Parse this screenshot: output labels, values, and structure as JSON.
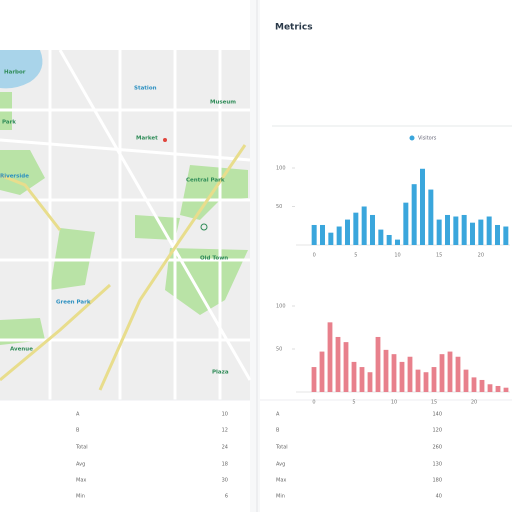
{
  "header": {
    "title": "Metrics"
  },
  "map": {
    "labels": [
      "Harbor",
      "Park",
      "Station",
      "Market",
      "Central Park",
      "Riverside",
      "Museum",
      "Old Town",
      "Green Park",
      "Avenue",
      "Plaza"
    ]
  },
  "charts": [
    {
      "type": "bar",
      "legend": "Visitors",
      "color": "#3aa6dc",
      "categories": [
        "0",
        null,
        null,
        null,
        null,
        "5",
        null,
        null,
        null,
        null,
        "10",
        null,
        null,
        null,
        null,
        "15",
        null,
        null,
        null,
        null,
        "20",
        null,
        null,
        null
      ],
      "values": [
        26,
        26,
        16,
        24,
        33,
        42,
        50,
        39,
        20,
        13,
        7,
        55,
        79,
        99,
        72,
        33,
        39,
        37,
        39,
        29,
        33,
        37,
        26,
        24
      ],
      "ylim": [
        0,
        100
      ],
      "yticks": [
        50,
        100
      ]
    },
    {
      "type": "bar",
      "color": "#e8808c",
      "categories": [
        "0",
        null,
        null,
        null,
        null,
        "5",
        null,
        null,
        null,
        null,
        "10",
        null,
        null,
        null,
        null,
        "15",
        null,
        null,
        null,
        null,
        "20",
        null,
        null,
        null,
        null
      ],
      "values": [
        29,
        47,
        81,
        64,
        58,
        35,
        29,
        23,
        64,
        49,
        44,
        35,
        41,
        26,
        23,
        29,
        44,
        47,
        41,
        26,
        17,
        14,
        9,
        7,
        5
      ],
      "ylim": [
        0,
        100
      ],
      "yticks": [
        50,
        100
      ]
    }
  ],
  "tables": {
    "left": [
      [
        "A",
        "10"
      ],
      [
        "B",
        "12"
      ],
      [
        "Total",
        "24"
      ],
      [
        "Avg",
        "18"
      ],
      [
        "Max",
        "30"
      ],
      [
        "Min",
        "6"
      ]
    ],
    "right": [
      [
        "A",
        "140"
      ],
      [
        "B",
        "120"
      ],
      [
        "Total",
        "260"
      ],
      [
        "Avg",
        "130"
      ],
      [
        "Max",
        "180"
      ],
      [
        "Min",
        "40"
      ]
    ]
  }
}
